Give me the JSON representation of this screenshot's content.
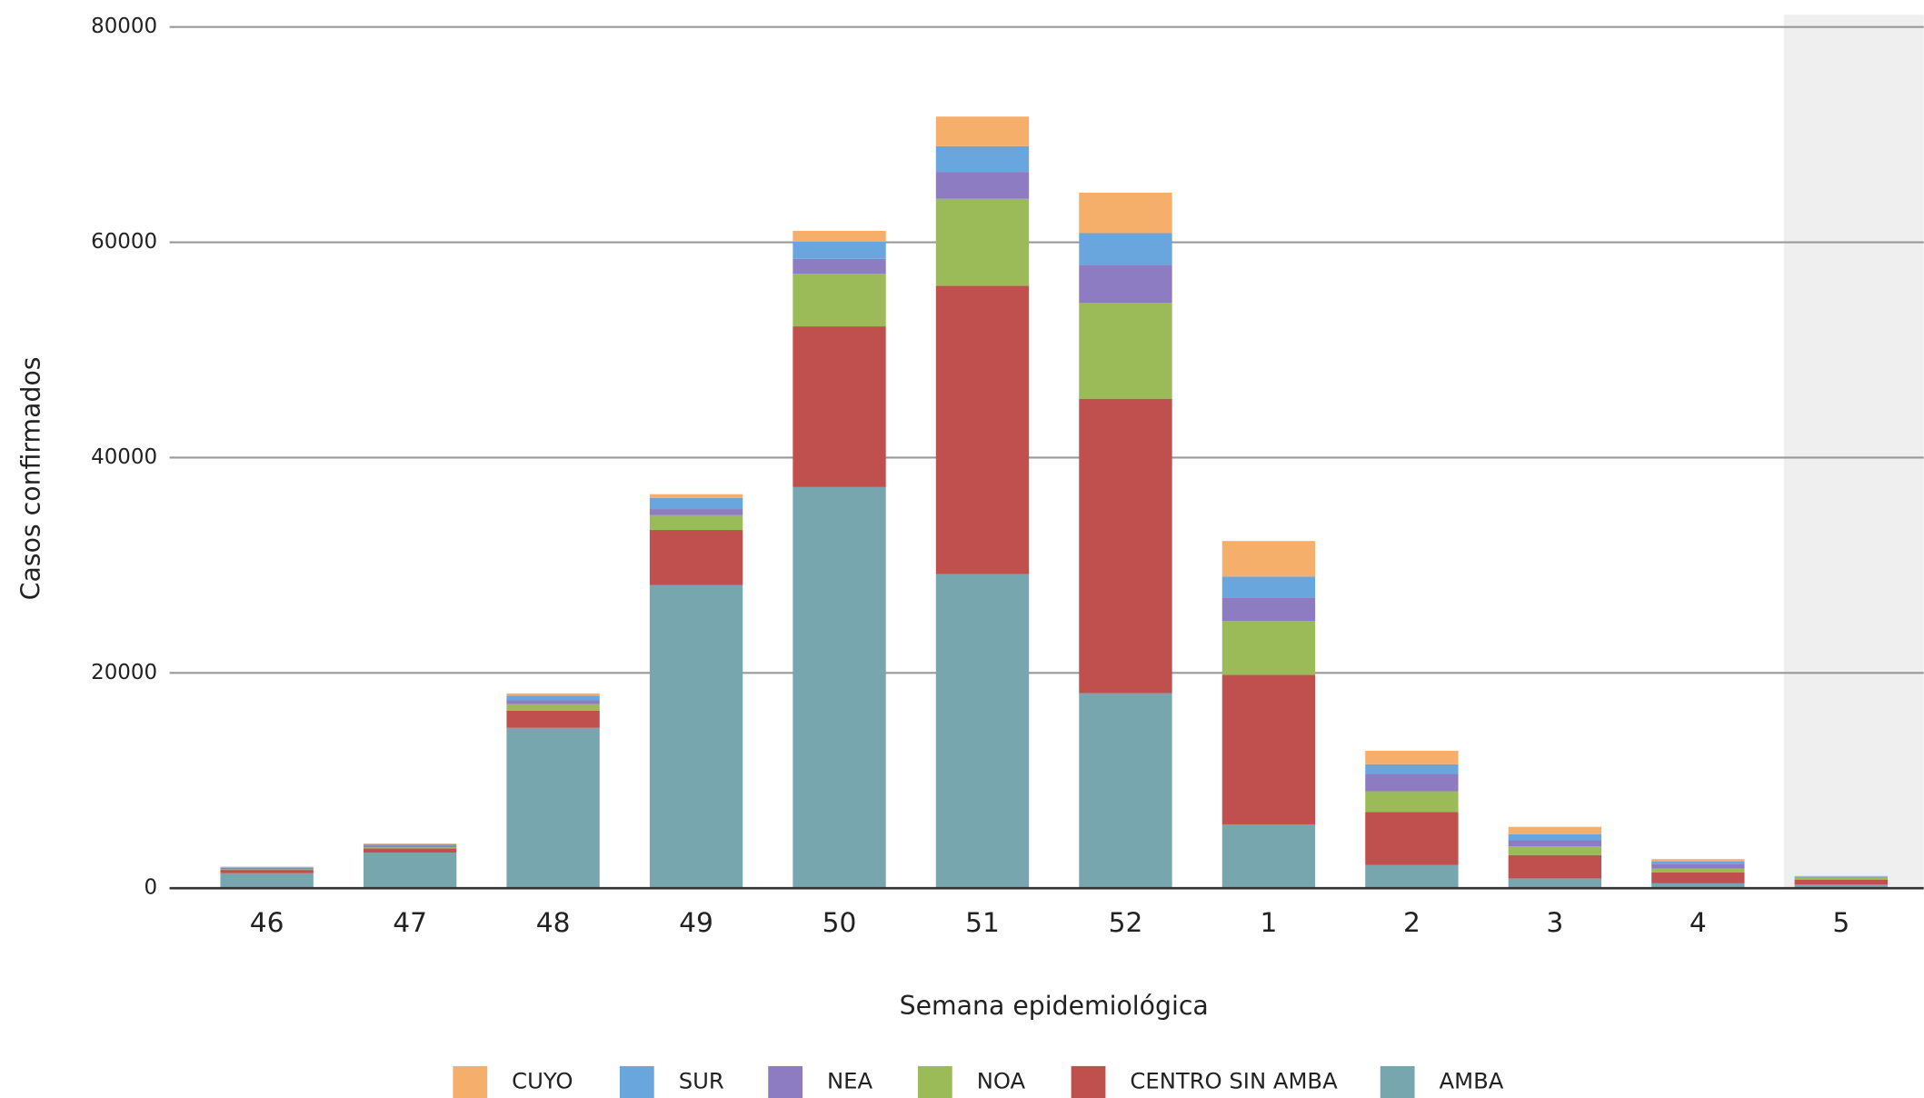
{
  "chart_data": {
    "type": "bar",
    "stacked": true,
    "x_label": "Semana epidemiológica",
    "y_label": "Casos confirmados",
    "categories": [
      "46",
      "47",
      "48",
      "49",
      "50",
      "51",
      "52",
      "1",
      "2",
      "3",
      "4",
      "5"
    ],
    "ylim": [
      0,
      80000
    ],
    "yticks": [
      0,
      20000,
      40000,
      60000,
      80000
    ],
    "grid": true,
    "series": [
      {
        "name": "AMBA",
        "color": "#77a6ae",
        "values": [
          1400,
          3300,
          14900,
          28150,
          37260,
          29170,
          18120,
          5930,
          2170,
          910,
          450,
          340
        ]
      },
      {
        "name": "CENTRO SIN AMBA",
        "color": "#c0504d",
        "values": [
          300,
          400,
          1600,
          5130,
          14930,
          26780,
          27350,
          13900,
          4900,
          2170,
          1030,
          460
        ]
      },
      {
        "name": "NOA",
        "color": "#9bbb59",
        "values": [
          60,
          100,
          600,
          1370,
          4900,
          8090,
          8890,
          5010,
          1940,
          800,
          340,
          200
        ]
      },
      {
        "name": "NEA",
        "color": "#8e7cc3",
        "values": [
          120,
          150,
          350,
          570,
          1370,
          2500,
          3530,
          2170,
          1600,
          570,
          450,
          50
        ]
      },
      {
        "name": "SUR",
        "color": "#6aa6de",
        "values": [
          60,
          150,
          450,
          1030,
          1600,
          2390,
          2960,
          1940,
          910,
          570,
          230,
          50
        ]
      },
      {
        "name": "CUYO",
        "color": "#f6ae6b",
        "values": [
          60,
          50,
          200,
          350,
          1000,
          2750,
          3760,
          3300,
          1240,
          680,
          200,
          40
        ]
      }
    ]
  }
}
